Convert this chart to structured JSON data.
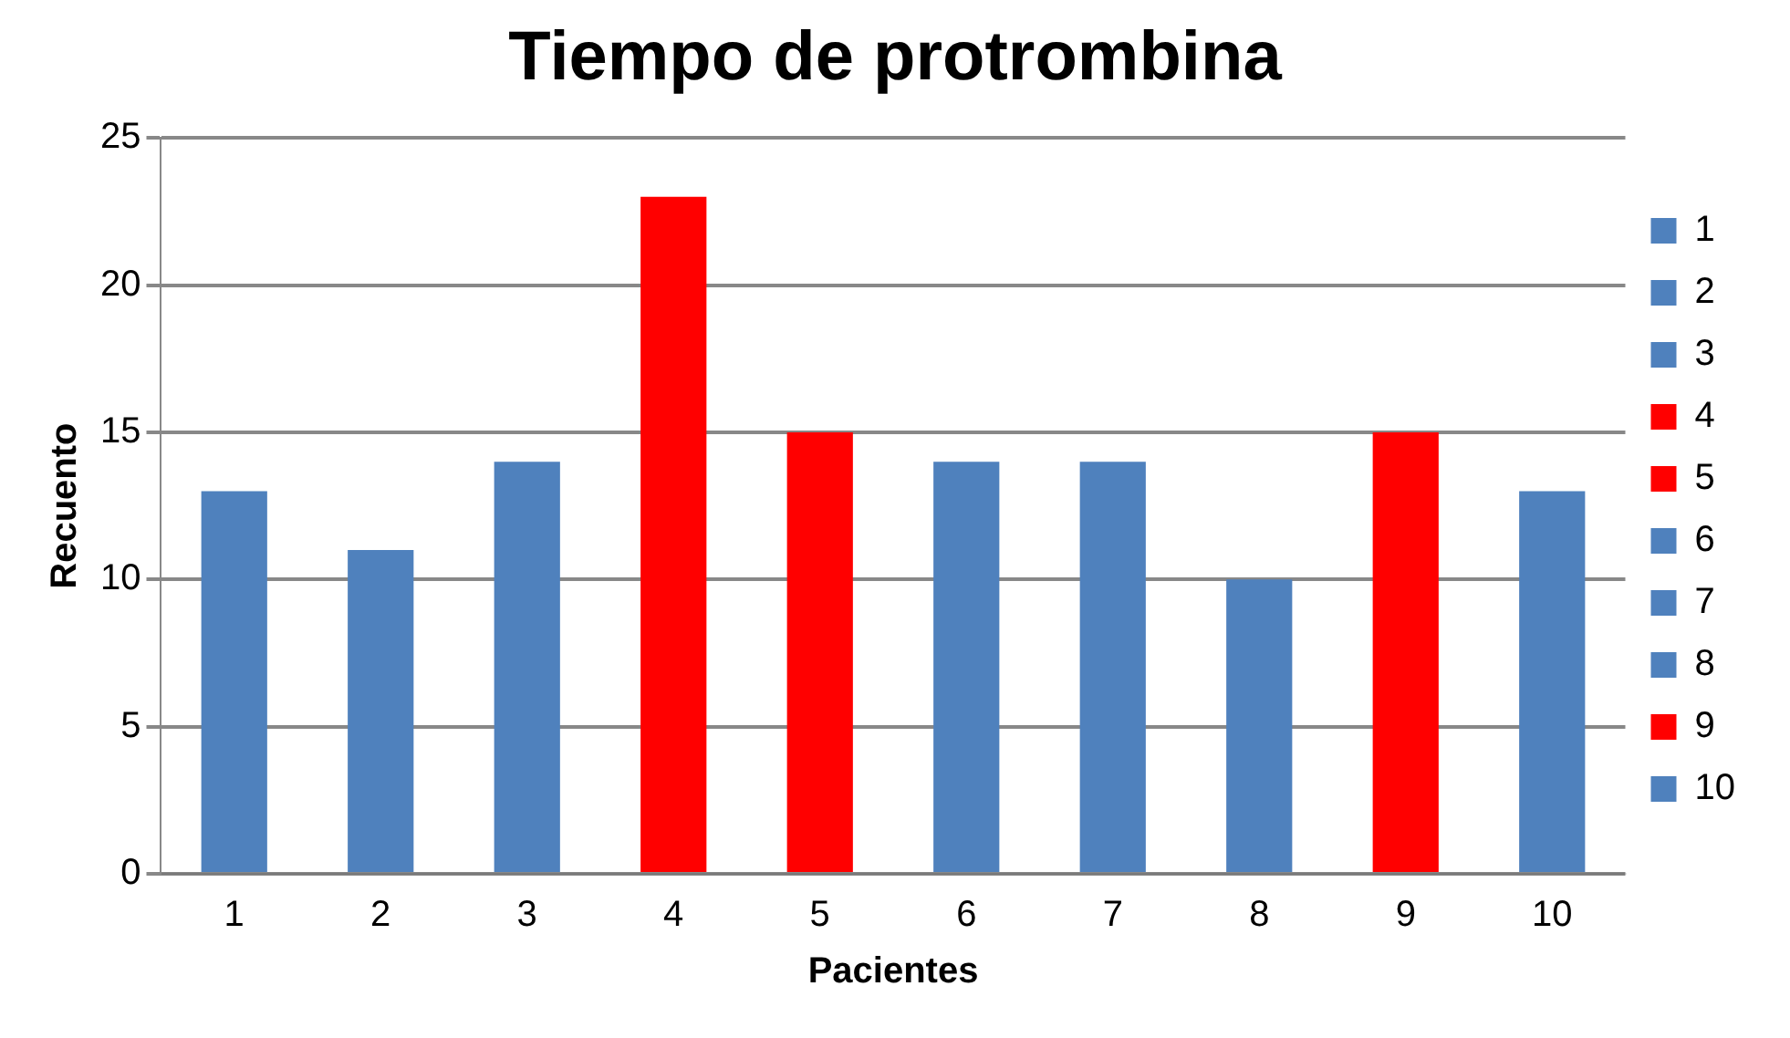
{
  "chart_data": {
    "type": "bar",
    "title": "Tiempo de protrombina",
    "xlabel": "Pacientes",
    "ylabel": "Recuento",
    "categories": [
      "1",
      "2",
      "3",
      "4",
      "5",
      "6",
      "7",
      "8",
      "9",
      "10"
    ],
    "series": [
      {
        "name": "1",
        "color": "#4f81bd",
        "values": [
          13,
          null,
          null,
          null,
          null,
          null,
          null,
          null,
          null,
          null
        ]
      },
      {
        "name": "2",
        "color": "#4f81bd",
        "values": [
          null,
          11,
          null,
          null,
          null,
          null,
          null,
          null,
          null,
          null
        ]
      },
      {
        "name": "3",
        "color": "#4f81bd",
        "values": [
          null,
          null,
          14,
          null,
          null,
          null,
          null,
          null,
          null,
          null
        ]
      },
      {
        "name": "4",
        "color": "#ff0000",
        "values": [
          null,
          null,
          null,
          23,
          null,
          null,
          null,
          null,
          null,
          null
        ]
      },
      {
        "name": "5",
        "color": "#ff0000",
        "values": [
          null,
          null,
          null,
          null,
          15,
          null,
          null,
          null,
          null,
          null
        ]
      },
      {
        "name": "6",
        "color": "#4f81bd",
        "values": [
          null,
          null,
          null,
          null,
          null,
          14,
          null,
          null,
          null,
          null
        ]
      },
      {
        "name": "7",
        "color": "#4f81bd",
        "values": [
          null,
          null,
          null,
          null,
          null,
          null,
          14,
          null,
          null,
          null
        ]
      },
      {
        "name": "8",
        "color": "#4f81bd",
        "values": [
          null,
          null,
          null,
          null,
          null,
          null,
          null,
          10,
          null,
          null
        ]
      },
      {
        "name": "9",
        "color": "#ff0000",
        "values": [
          null,
          null,
          null,
          null,
          null,
          null,
          null,
          null,
          15,
          null
        ]
      },
      {
        "name": "10",
        "color": "#4f81bd",
        "values": [
          null,
          null,
          null,
          null,
          null,
          null,
          null,
          null,
          null,
          13
        ]
      }
    ],
    "ylim": [
      0,
      25
    ],
    "yticks": [
      0,
      5,
      10,
      15,
      20,
      25
    ],
    "grid": "y",
    "legend": "right"
  }
}
